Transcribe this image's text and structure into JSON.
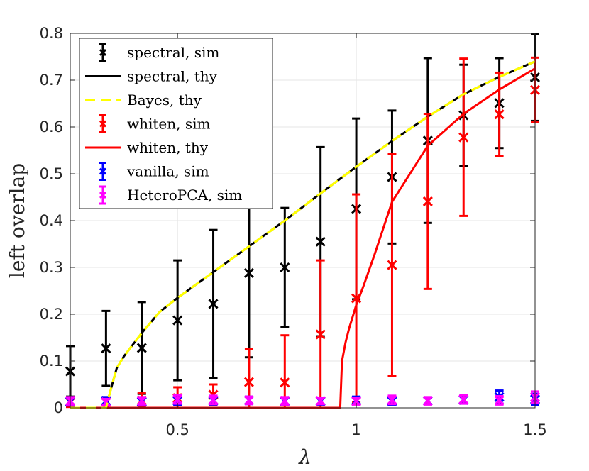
{
  "chart_data": {
    "type": "line",
    "xlabel": "λ",
    "ylabel": "left overlap",
    "xlim": [
      0.2,
      1.5
    ],
    "ylim": [
      0,
      0.8
    ],
    "xticks": [
      0.5,
      1,
      1.5
    ],
    "xtick_labels": [
      "0.5",
      "1",
      "1.5"
    ],
    "yticks": [
      0,
      0.1,
      0.2,
      0.3,
      0.4,
      0.5,
      0.6,
      0.7,
      0.8
    ],
    "ytick_labels": [
      "0",
      "0.1",
      "0.2",
      "0.3",
      "0.4",
      "0.5",
      "0.6",
      "0.7",
      "0.8"
    ],
    "grid": true,
    "legend_position": "top-left",
    "series": [
      {
        "name": "spectral, sim",
        "kind": "errorbar",
        "color": "#000000",
        "x": [
          0.2,
          0.3,
          0.4,
          0.5,
          0.6,
          0.7,
          0.8,
          0.9,
          1.0,
          1.1,
          1.2,
          1.3,
          1.4,
          1.5
        ],
        "y": [
          0.078,
          0.127,
          0.128,
          0.187,
          0.222,
          0.288,
          0.3,
          0.355,
          0.425,
          0.493,
          0.571,
          0.625,
          0.651,
          0.706
        ],
        "err": [
          0.054,
          0.08,
          0.098,
          0.128,
          0.158,
          0.18,
          0.127,
          0.202,
          0.193,
          0.142,
          0.176,
          0.108,
          0.096,
          0.093
        ]
      },
      {
        "name": "spectral, thy",
        "kind": "line",
        "style": "solid",
        "color": "#000000",
        "x": [
          0.2,
          0.3,
          0.31,
          0.33,
          0.35,
          0.4,
          0.45,
          0.5,
          0.6,
          0.7,
          0.8,
          0.9,
          1.0,
          1.1,
          1.2,
          1.3,
          1.4,
          1.5
        ],
        "y": [
          0,
          0,
          0.03,
          0.085,
          0.11,
          0.16,
          0.205,
          0.235,
          0.29,
          0.345,
          0.4,
          0.458,
          0.515,
          0.57,
          0.622,
          0.67,
          0.707,
          0.74
        ]
      },
      {
        "name": "Bayes, thy",
        "kind": "line",
        "style": "dashed",
        "color": "#ffff00",
        "x": [
          0.2,
          0.3,
          0.31,
          0.33,
          0.35,
          0.4,
          0.45,
          0.5,
          0.6,
          0.7,
          0.8,
          0.9,
          1.0,
          1.1,
          1.2,
          1.3,
          1.4,
          1.5
        ],
        "y": [
          0,
          0,
          0.03,
          0.085,
          0.11,
          0.16,
          0.205,
          0.235,
          0.29,
          0.345,
          0.4,
          0.458,
          0.515,
          0.57,
          0.622,
          0.67,
          0.707,
          0.74
        ]
      },
      {
        "name": "whiten, sim",
        "kind": "errorbar",
        "color": "#ff0000",
        "x": [
          0.2,
          0.3,
          0.4,
          0.5,
          0.6,
          0.7,
          0.8,
          0.9,
          1.0,
          1.1,
          1.2,
          1.3,
          1.4,
          1.5
        ],
        "y": [
          0.012,
          0.012,
          0.016,
          0.021,
          0.028,
          0.055,
          0.054,
          0.157,
          0.234,
          0.305,
          0.441,
          0.578,
          0.627,
          0.679
        ],
        "err": [
          0.01,
          0.01,
          0.015,
          0.023,
          0.022,
          0.071,
          0.101,
          0.158,
          0.222,
          0.237,
          0.187,
          0.168,
          0.089,
          0.069
        ]
      },
      {
        "name": "whiten, thy",
        "kind": "line",
        "style": "solid",
        "color": "#ff0000",
        "x": [
          0.2,
          0.955,
          0.96,
          0.97,
          0.98,
          1.0,
          1.02,
          1.05,
          1.1,
          1.15,
          1.2,
          1.3,
          1.4,
          1.5
        ],
        "y": [
          0,
          0,
          0.1,
          0.14,
          0.17,
          0.22,
          0.26,
          0.325,
          0.44,
          0.5,
          0.56,
          0.628,
          0.68,
          0.725
        ]
      },
      {
        "name": "vanilla, sim",
        "kind": "errorbar",
        "color": "#0000ff",
        "x": [
          0.2,
          0.3,
          0.4,
          0.5,
          0.6,
          0.7,
          0.8,
          0.9,
          1.0,
          1.1,
          1.2,
          1.3,
          1.4,
          1.5
        ],
        "y": [
          0.013,
          0.015,
          0.013,
          0.015,
          0.015,
          0.016,
          0.014,
          0.014,
          0.016,
          0.014,
          0.015,
          0.017,
          0.023,
          0.018
        ],
        "err": [
          0.008,
          0.008,
          0.008,
          0.009,
          0.008,
          0.008,
          0.007,
          0.007,
          0.008,
          0.008,
          0.007,
          0.008,
          0.014,
          0.012
        ]
      },
      {
        "name": "HeteroPCA, sim",
        "kind": "errorbar",
        "color": "#ff00ff",
        "x": [
          0.2,
          0.3,
          0.4,
          0.5,
          0.6,
          0.7,
          0.8,
          0.9,
          1.0,
          1.1,
          1.2,
          1.3,
          1.4,
          1.5
        ],
        "y": [
          0.015,
          0.012,
          0.015,
          0.018,
          0.017,
          0.016,
          0.015,
          0.015,
          0.014,
          0.017,
          0.015,
          0.018,
          0.016,
          0.023
        ],
        "err": [
          0.008,
          0.007,
          0.008,
          0.009,
          0.009,
          0.008,
          0.008,
          0.007,
          0.007,
          0.009,
          0.008,
          0.009,
          0.009,
          0.012
        ]
      }
    ]
  }
}
